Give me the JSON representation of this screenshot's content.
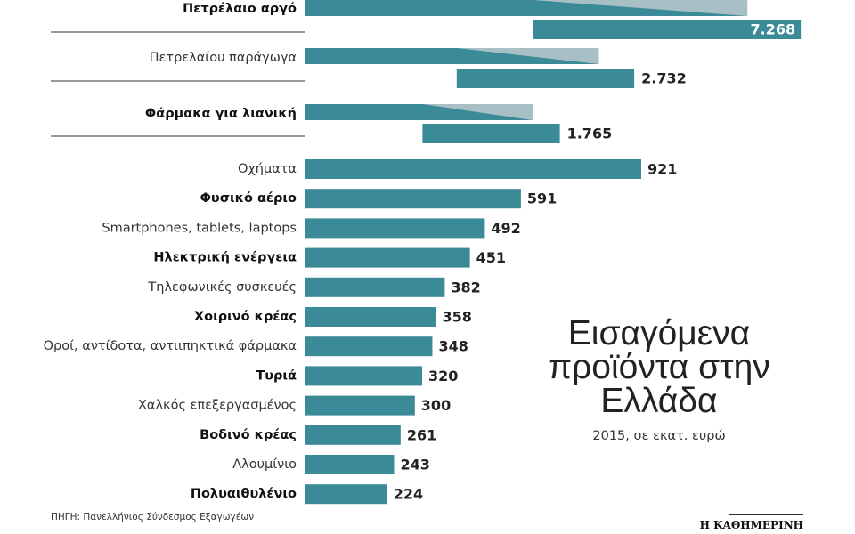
{
  "chart_data": {
    "type": "bar",
    "orientation": "horizontal",
    "title": "Εισαγόμενα προϊόντα στην Ελλάδα",
    "subtitle": "2015, σε εκατ. ευρώ",
    "source": "ΠΗΓΗ: Πανελλήνιος Σύνδεσμος Εξαγωγέων",
    "publisher": "Η ΚΑΘΗΜΕΡΙΝΗ",
    "color": "#3b8a97",
    "break_color": "#a9bfc6",
    "categories": [
      "Πετρέλαιο αργό",
      "Πετρελαίου παράγωγα",
      "Φάρμακα για λιανική",
      "Οχήματα",
      "Φυσικό αέριο",
      "Smartphones, tablets, laptops",
      "Ηλεκτρική ενέργεια",
      "Τηλεφωνικές συσκευές",
      "Χοιρινό κρέας",
      "Οροί, αντίδοτα, αντιιπηκτικά φάρμακα",
      "Τυριά",
      "Χαλκός επεξεργασμένος",
      "Βοδινό κρέας",
      "Αλουμίνιο",
      "Πολυαιθυλένιο"
    ],
    "values": [
      7268,
      2732,
      1765,
      921,
      591,
      492,
      451,
      382,
      358,
      348,
      320,
      300,
      261,
      243,
      224
    ],
    "value_labels": [
      "7.268",
      "2.732",
      "1.765",
      "921",
      "591",
      "492",
      "451",
      "382",
      "358",
      "348",
      "320",
      "300",
      "261",
      "243",
      "224"
    ]
  }
}
